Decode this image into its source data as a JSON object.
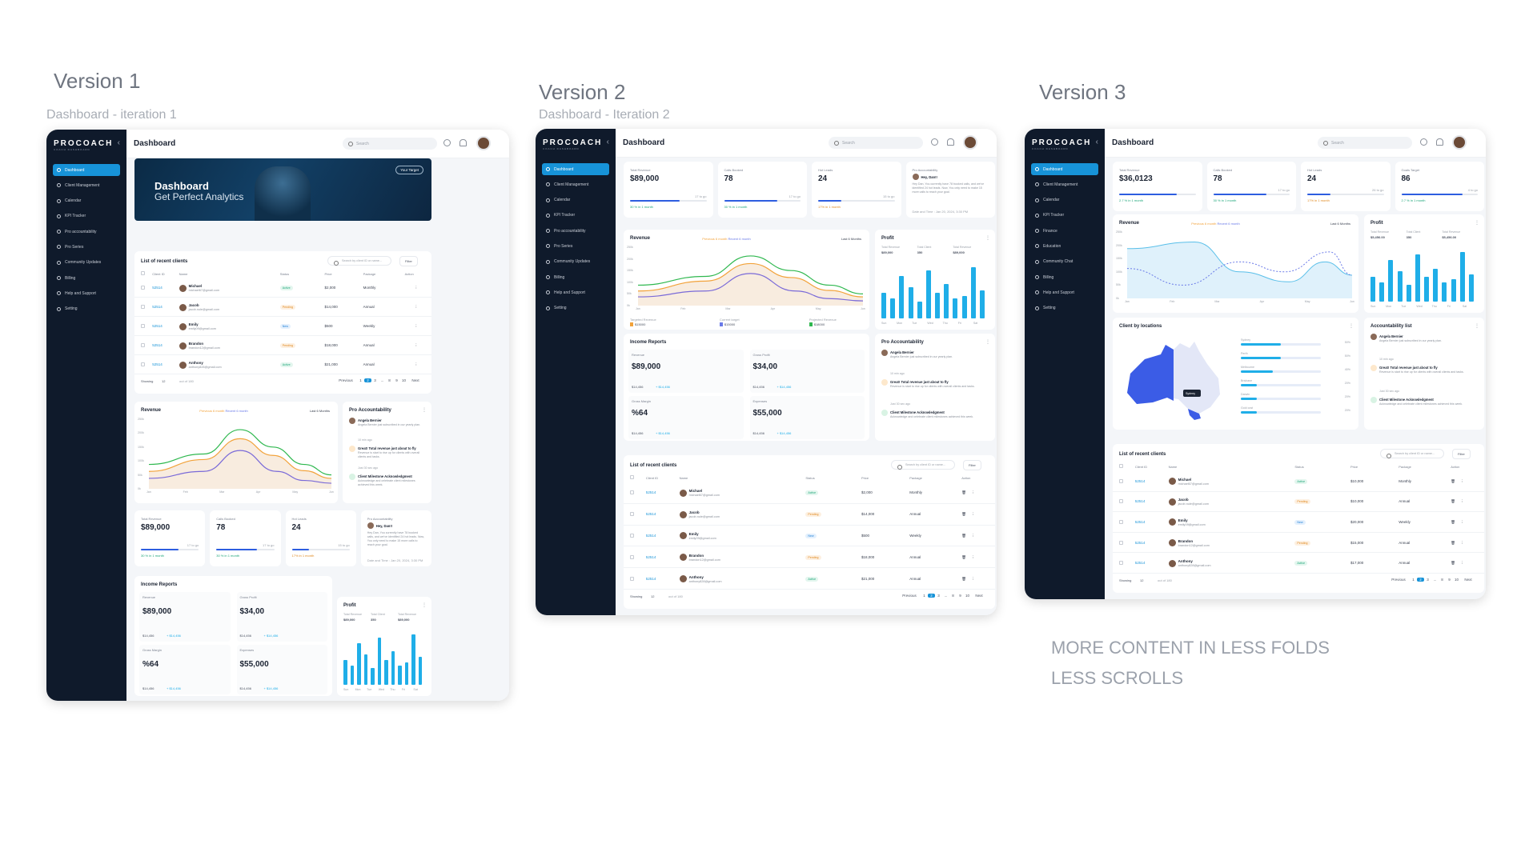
{
  "labels": {
    "v1_title": "Version 1",
    "v1_sub": "Dashboard - iteration 1",
    "v2_title": "Version 2",
    "v2_sub": "Dashboard - Iteration 2",
    "v3_title": "Version 3",
    "note_line1": "MORE CONTENT IN LESS FOLDS",
    "note_line2": "LESS SCROLLS"
  },
  "app": {
    "logo": "PROCOACH",
    "logo_sub": "COACH DASHBOARD",
    "page_title": "Dashboard",
    "search_placeholder": "Search",
    "nav": [
      "Dashboard",
      "Client Management",
      "Calendar",
      "KPI Tracker",
      "Pro accountability",
      "Pro Series",
      "Community Updates",
      "Billing",
      "Help and Support",
      "Setting"
    ],
    "nav_v3": [
      "Dashboard",
      "Client Management",
      "Calendar",
      "KPI Tracker",
      "Finance",
      "Education",
      "Community Chat",
      "Billing",
      "Help and Support",
      "Setting"
    ]
  },
  "banner": {
    "title": "Dashboard",
    "subtitle": "Get Perfect Analytics",
    "button": "Your Target"
  },
  "kpis": [
    {
      "label": "Total Revenue",
      "value": "$89,000",
      "togo": "17 to go",
      "delta": "30 % in 1 month",
      "fill": 0.65,
      "up": true
    },
    {
      "label": "Calls Booked",
      "value": "78",
      "togo": "17 to go",
      "delta": "30 % in 1 month",
      "fill": 0.7,
      "up": true
    },
    {
      "label": "Hot Leads",
      "value": "24",
      "togo": "15 to go",
      "delta": "17% in 1 month",
      "fill": 0.3,
      "up": false
    }
  ],
  "kpis_v3": [
    {
      "label": "Total Revenue",
      "value": "$36,0123",
      "togo": "",
      "delta": "2.7 % in 1 month",
      "fill": 0.75,
      "up": true
    },
    {
      "label": "Calls Booked",
      "value": "78",
      "togo": "17 to go",
      "delta": "30 % in 1 month",
      "fill": 0.7,
      "up": true
    },
    {
      "label": "Hot Leads",
      "value": "24",
      "togo": "26 to go",
      "delta": "17% in 1 month",
      "fill": 0.3,
      "up": false
    },
    {
      "label": "Goals Target",
      "value": "86",
      "togo": "4 to go",
      "delta": "2.7 % in 1 month",
      "fill": 0.8,
      "up": true
    }
  ],
  "kpi_message": {
    "label": "Pro Accountability",
    "name": "Hey, Dan!!",
    "text": "Hey Dan, You currently have 78 booked calls, and we've identified 24 hot leads. Now, You only need to make 15 more calls to reach your goal.",
    "date": "Date and Time : Jan 20, 2024, 3:30 PM"
  },
  "revenue": {
    "title": "Revenue",
    "range": "Last 6 Months",
    "legend": [
      "Previous 6 month",
      "Recent 6 month"
    ],
    "y_ticks": [
      "250k",
      "200k",
      "150k",
      "100k",
      "50k",
      "0k"
    ],
    "months": [
      "Jan",
      "Feb",
      "Mar",
      "Apr",
      "May",
      "Jun"
    ],
    "footer": [
      {
        "label": "Targeted Revenue",
        "value": "$15000"
      },
      {
        "label": "Current target",
        "value": "$15000"
      },
      {
        "label": "Projected Revenue",
        "value": "$18000"
      }
    ]
  },
  "profit": {
    "title": "Profit",
    "stats": [
      {
        "label": "Total Revenue",
        "value": "$89,000"
      },
      {
        "label": "Total Client",
        "value": "350"
      },
      {
        "label": "Total Revenue",
        "value": "$89,000"
      }
    ],
    "stats_v3": [
      {
        "label": "Total Revenue",
        "value": "$5,456.00"
      },
      {
        "label": "Total Client",
        "value": "350"
      },
      {
        "label": "Total Revenue",
        "value": "$5,456.00"
      }
    ],
    "days": [
      "Sun",
      "Mon",
      "Tue",
      "Wed",
      "Thu",
      "Fri",
      "Sat"
    ],
    "bars": [
      0.45,
      0.35,
      0.75,
      0.55,
      0.3,
      0.85,
      0.45,
      0.6,
      0.35,
      0.4,
      0.9,
      0.5
    ]
  },
  "income": {
    "title": "Income Reports",
    "items": [
      {
        "label": "Revenue",
        "value": "$89,000",
        "sub": "$14,456",
        "delta": "+ $14,456"
      },
      {
        "label": "Gross Profit",
        "value": "$34,00",
        "sub": "$14,456",
        "delta": "+ $14,456"
      },
      {
        "label": "Gross Margin",
        "value": "%64",
        "sub": "$14,456",
        "delta": "+ $14,456"
      },
      {
        "label": "Expenses",
        "value": "$55,000",
        "sub": "$14,456",
        "delta": "+ $14,456"
      }
    ]
  },
  "accountability": {
    "title": "Pro Accountability",
    "title_v3": "Accountability list",
    "items": [
      {
        "title": "Angela Bernier",
        "desc": "Angela Bernier just subscribed in our yearly plan.",
        "time": "10 min ago",
        "kind": "avatar"
      },
      {
        "title": "Great! Total revenue just about to fly",
        "desc": "Revenue is start to rise up for clients with overall clients and tasks.",
        "time": "Just 30 sec ago",
        "kind": "orange"
      },
      {
        "title": "Client Milestone Acknowledgment",
        "desc": "Acknowledge and celebrate client milestones achieved this week.",
        "time": "",
        "kind": "green"
      }
    ]
  },
  "clients": {
    "title": "List of recent clients",
    "title_v3": "List of recent   clients",
    "search_placeholder": "Search by client ID or name...",
    "filter": "Filter",
    "headers": [
      "Client ID",
      "Name",
      "Status",
      "Price",
      "Package",
      "Action"
    ],
    "rows": [
      {
        "id": "52514",
        "name": "Michael",
        "email": "michael67@gmail.com",
        "status": "Active",
        "price": "$2,000",
        "price_v3": "$10,000",
        "package": "Monthly"
      },
      {
        "id": "52514",
        "name": "Jacob",
        "email": "jacob.nule@gmail.com",
        "status": "Pending",
        "price": "$14,000",
        "price_v3": "$10,000",
        "package": "Annual"
      },
      {
        "id": "52514",
        "name": "Emily",
        "email": "emily09@gmail.com",
        "status": "New",
        "price": "$500",
        "price_v3": "$20,000",
        "package": "Weekly"
      },
      {
        "id": "52514",
        "name": "Brandon",
        "email": "brandon12@gmail.com",
        "status": "Pending",
        "price": "$18,000",
        "price_v3": "$15,000",
        "package": "Annual"
      },
      {
        "id": "52514",
        "name": "Anthony",
        "email": "anthony828@gmail.com",
        "status": "Active",
        "price": "$21,000",
        "price_v3": "$17,000",
        "package": "Annual"
      }
    ],
    "showing": "Showing",
    "per_page": "12",
    "out_of": "out of 180",
    "prev": "Previous",
    "next": "Next",
    "pages": [
      "1",
      "2",
      "3",
      "...",
      "8",
      "9",
      "10"
    ]
  },
  "locations": {
    "title": "Client by locations",
    "pin": "Sydney",
    "items": [
      {
        "name": "Sydney",
        "pct": "50%",
        "value": 0.5
      },
      {
        "name": "Perth",
        "pct": "50%",
        "value": 0.5
      },
      {
        "name": "Melbourne",
        "pct": "40%",
        "value": 0.4
      },
      {
        "name": "Brisbane",
        "pct": "20%",
        "value": 0.2
      },
      {
        "name": "Darwin",
        "pct": "20%",
        "value": 0.2
      },
      {
        "name": "Gold cost",
        "pct": "20%",
        "value": 0.2
      }
    ]
  }
}
